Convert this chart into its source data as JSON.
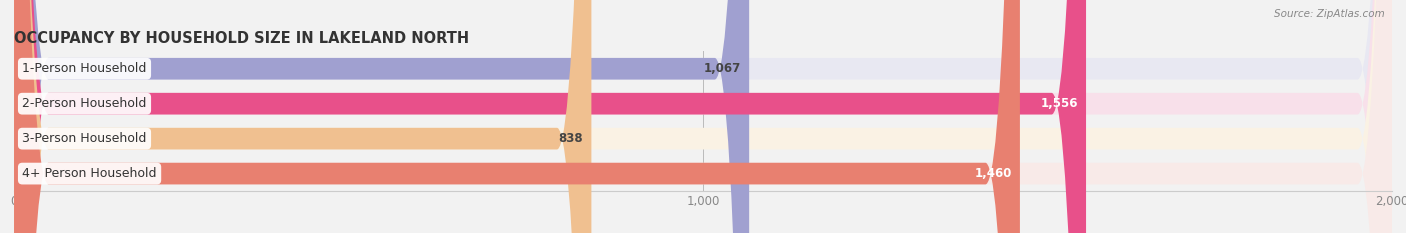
{
  "title": "OCCUPANCY BY HOUSEHOLD SIZE IN LAKELAND NORTH",
  "source": "Source: ZipAtlas.com",
  "categories": [
    "1-Person Household",
    "2-Person Household",
    "3-Person Household",
    "4+ Person Household"
  ],
  "values": [
    1067,
    1556,
    838,
    1460
  ],
  "bar_colors": [
    "#a0a0d0",
    "#e8508a",
    "#f0c090",
    "#e88070"
  ],
  "bar_bg_colors": [
    "#e8e8f2",
    "#f8e0ea",
    "#faf2e4",
    "#f8eae8"
  ],
  "label_colors": [
    "#444444",
    "#ffffff",
    "#444444",
    "#ffffff"
  ],
  "value_labels": [
    "1,067",
    "1,556",
    "838",
    "1,460"
  ],
  "xlim": [
    0,
    2000
  ],
  "xticks": [
    0,
    1000,
    2000
  ],
  "xticklabels": [
    "0",
    "1,000",
    "2,000"
  ],
  "figsize": [
    14.06,
    2.33
  ],
  "dpi": 100,
  "title_fontsize": 10.5,
  "label_fontsize": 9,
  "value_fontsize": 8.5,
  "bg_color": "#f2f2f2"
}
